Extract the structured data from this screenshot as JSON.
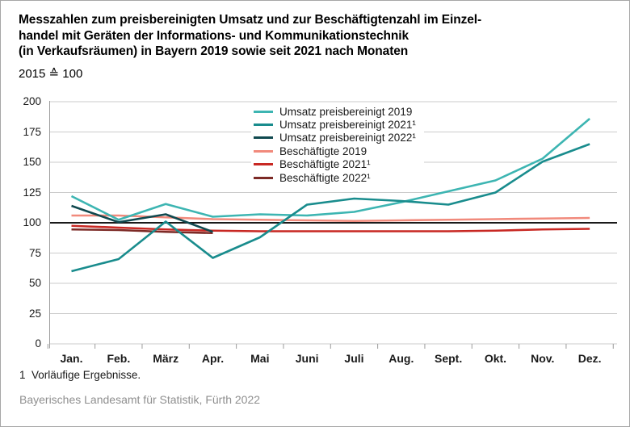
{
  "header": {
    "title_lines": [
      "Messzahlen zum preisbereinigten Umsatz und zur Beschäftigtenzahl im Einzel-",
      "handel mit Geräten der Informations- und Kommunikationstechnik",
      "(in Verkaufsräumen) in Bayern 2019 sowie seit 2021 nach Monaten"
    ],
    "subtitle": "2015 ≙ 100"
  },
  "chart_data": {
    "type": "line",
    "title": "Messzahlen zum preisbereinigten Umsatz und zur Beschäftigtenzahl im Einzelhandel mit Geräten der Informations- und Kommunikationstechnik (in Verkaufsräumen) in Bayern 2019 sowie seit 2021 nach Monaten",
    "index_base": "2015 ≙ 100",
    "categories": [
      "Jan.",
      "Feb.",
      "März",
      "Apr.",
      "Mai",
      "Juni",
      "Juli",
      "Aug.",
      "Sept.",
      "Okt.",
      "Nov.",
      "Dez."
    ],
    "ylim": [
      0,
      200
    ],
    "yticks": [
      0,
      25,
      50,
      75,
      100,
      125,
      150,
      175,
      200
    ],
    "baseline": 100,
    "grid": true,
    "legend_position": "inside-top-center",
    "series": [
      {
        "name": "Umsatz preisbereinigt 2019",
        "color": "#3db5b2",
        "values": [
          122,
          102.5,
          115.5,
          105,
          107,
          106,
          109,
          117,
          126,
          135,
          153,
          186
        ]
      },
      {
        "name": "Umsatz preisbereinigt 2021¹",
        "color": "#198c8d",
        "values": [
          60,
          70,
          101,
          71,
          88,
          115,
          120,
          118,
          115,
          125,
          150.5,
          165
        ]
      },
      {
        "name": "Umsatz preisbereinigt 2022¹",
        "color": "#10494f",
        "values": [
          114,
          100.5,
          107,
          92.5,
          null,
          null,
          null,
          null,
          null,
          null,
          null,
          null
        ]
      },
      {
        "name": "Beschäftigte 2019",
        "color": "#f18a7c",
        "values": [
          106,
          106,
          104.5,
          103,
          102.5,
          102,
          101.5,
          102,
          102.5,
          103,
          103.5,
          104
        ]
      },
      {
        "name": "Beschäftigte 2021¹",
        "color": "#c82823",
        "values": [
          97.5,
          96,
          94.5,
          93.5,
          93,
          93,
          93,
          93,
          93,
          93.5,
          94.5,
          95
        ]
      },
      {
        "name": "Beschäftigte 2022¹",
        "color": "#7c2a26",
        "values": [
          94.5,
          94,
          92.5,
          91.5,
          null,
          null,
          null,
          null,
          null,
          null,
          null,
          null
        ]
      }
    ]
  },
  "footer": {
    "footnote": "1  Vorläufige Ergebnisse.",
    "source": "Bayerisches Landesamt für Statistik, Fürth 2022"
  },
  "colors": {
    "grid": "#cbcbcb",
    "axis": "#9b9b9b",
    "baseline": "#1a1a1a",
    "text": "#1a1a1a",
    "source_text": "#8f8f8f",
    "background": "#ffffff"
  }
}
